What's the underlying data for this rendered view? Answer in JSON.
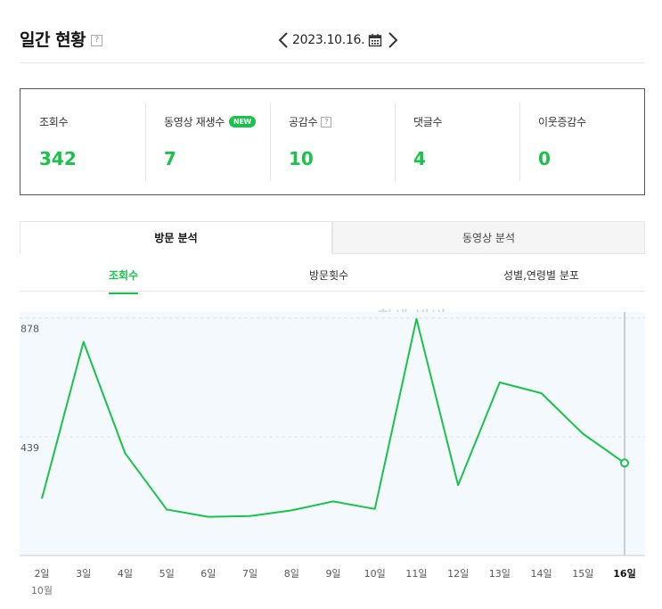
{
  "header": {
    "title": "일간 현황",
    "help": "?",
    "date": "2023.10.16."
  },
  "summary": [
    {
      "label": "조회수",
      "value": "342"
    },
    {
      "label": "동영상 재생수",
      "value": "7",
      "badge": "NEW"
    },
    {
      "label": "공감수",
      "value": "10",
      "help": "?"
    },
    {
      "label": "댓글수",
      "value": "4"
    },
    {
      "label": "이웃증감수",
      "value": "0"
    }
  ],
  "tabs": [
    {
      "label": "방문 분석",
      "active": true
    },
    {
      "label": "동영상 분석",
      "active": false
    }
  ],
  "subtabs": [
    {
      "label": "조회수",
      "active": true
    },
    {
      "label": "방문횟수",
      "active": false
    },
    {
      "label": "성별,연령별 분포",
      "active": false
    }
  ],
  "watermark": "힘센 밤비",
  "colors": {
    "accent": "#19c34a",
    "plot_bg": "#f4f9fd"
  },
  "chart_data": {
    "type": "line",
    "categories": [
      "2일",
      "3일",
      "4일",
      "5일",
      "6일",
      "7일",
      "8일",
      "9일",
      "10일",
      "11일",
      "12일",
      "13일",
      "14일",
      "15일",
      "16일"
    ],
    "x_secondary_label": "10월",
    "values": [
      210,
      790,
      378,
      170,
      143,
      146,
      167,
      200,
      172,
      875,
      260,
      640,
      600,
      450,
      342
    ],
    "yticks": [
      439,
      878
    ],
    "ylim": [
      0,
      900
    ],
    "highlight_index": 14,
    "grid": "dashed horizontal"
  }
}
